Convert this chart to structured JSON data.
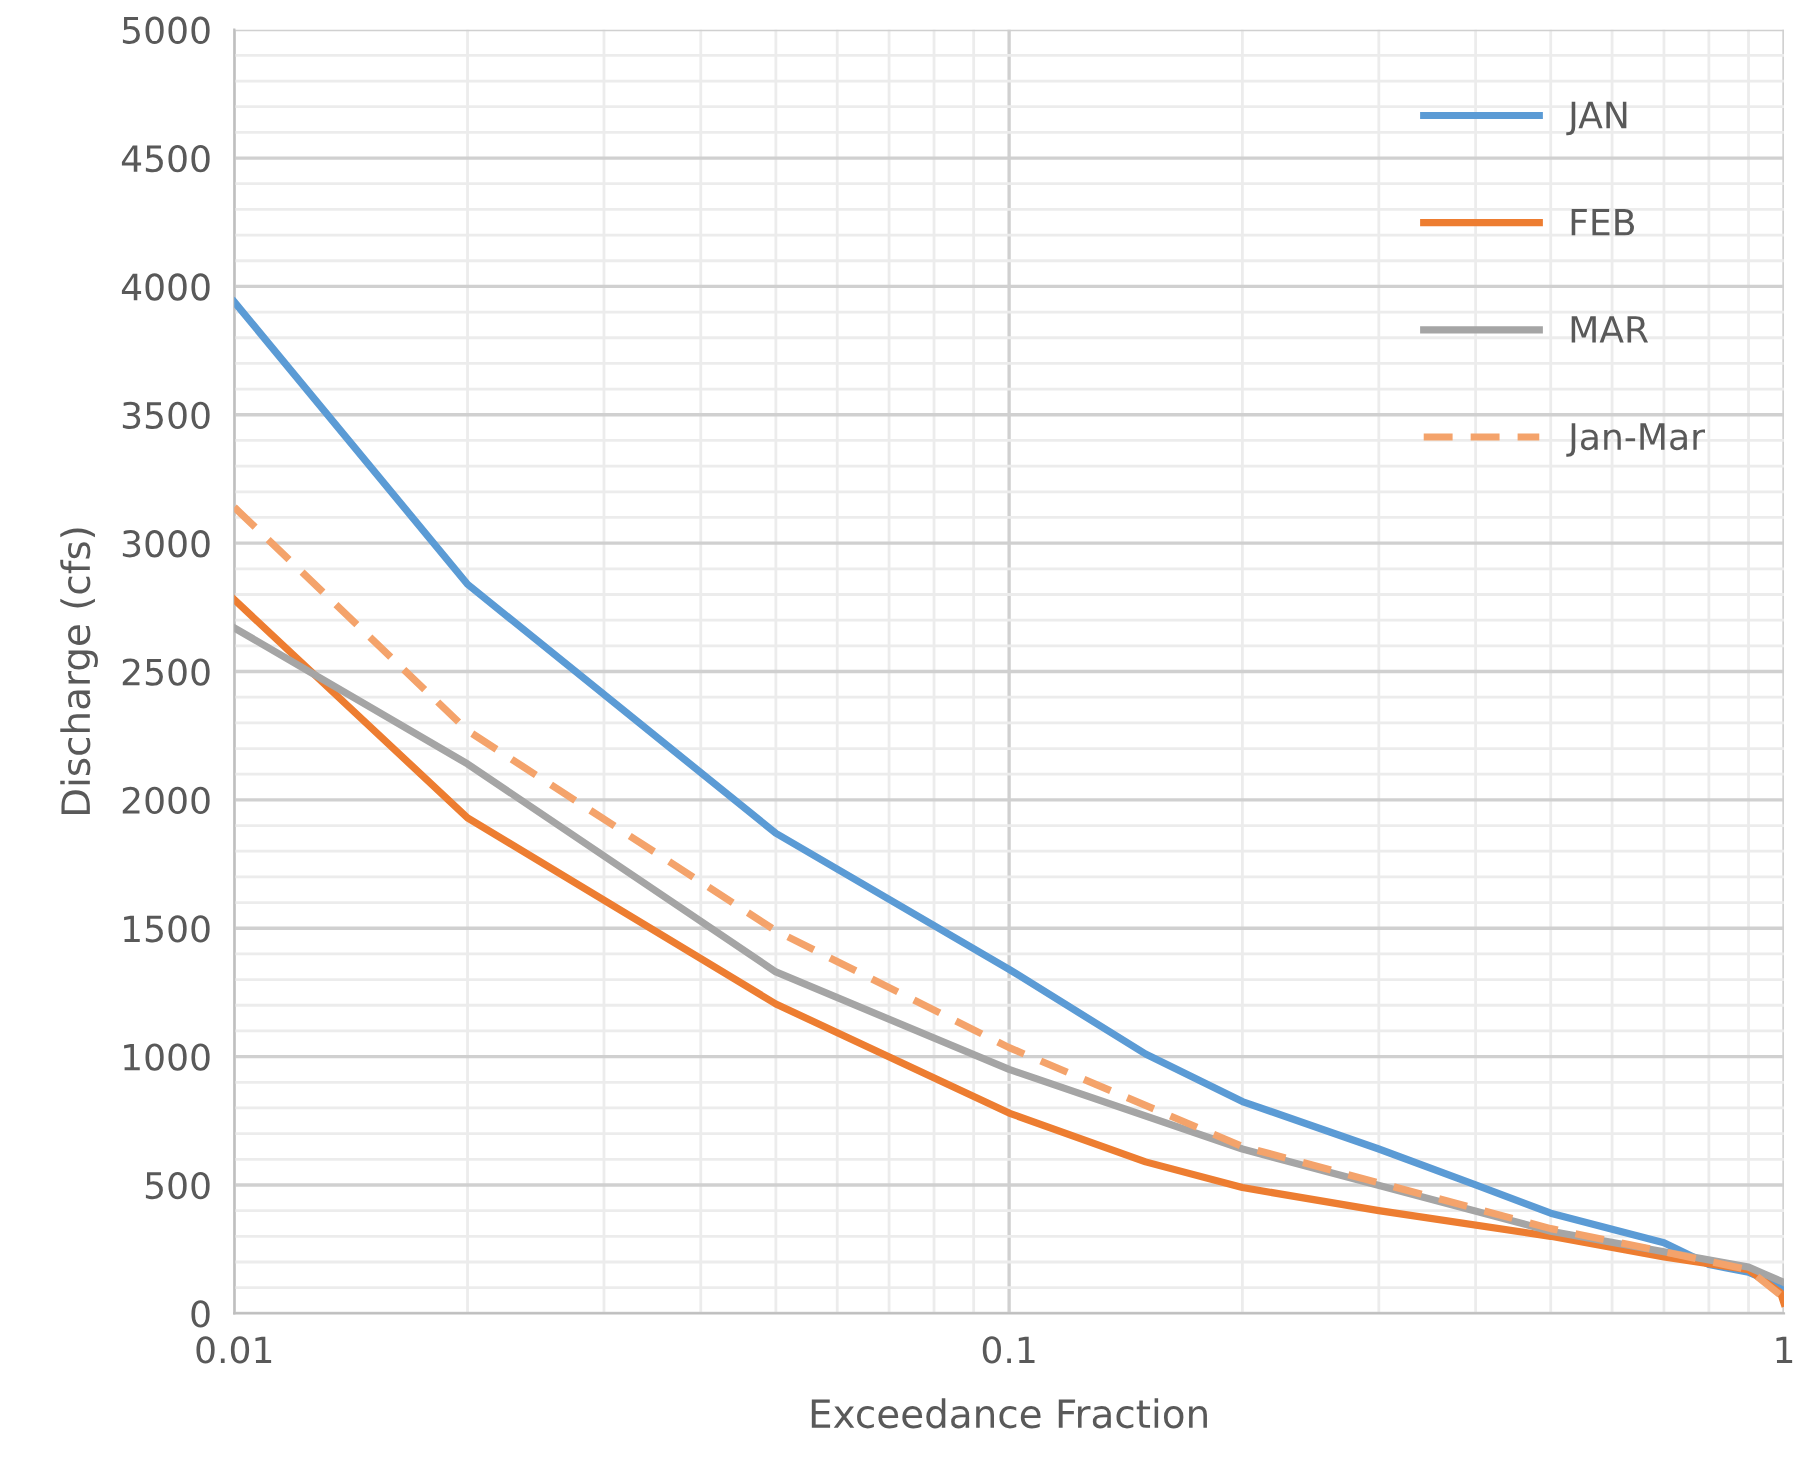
{
  "chart_data": {
    "type": "line",
    "xlabel": "Exceedance Fraction",
    "ylabel": "Discharge (cfs)",
    "log": "x",
    "xlim": [
      0.01,
      1
    ],
    "xticks": [
      0.01,
      0.1,
      1
    ],
    "ylim": [
      0,
      5000
    ],
    "yticks": [
      0,
      500,
      1000,
      1500,
      2000,
      2500,
      3000,
      3500,
      4000,
      4500,
      5000
    ],
    "grid": true,
    "legend": "top right",
    "series": [
      {
        "name": "JAN",
        "color": "#5b9bd5",
        "line_style": "solid",
        "x": [
          0.01,
          0.02,
          0.05,
          0.1,
          0.15,
          0.2,
          0.3,
          0.4,
          0.5,
          0.7,
          0.8,
          0.9,
          1
        ],
        "values": [
          3940,
          2840,
          1870,
          1340,
          1010,
          825,
          640,
          500,
          390,
          275,
          190,
          160,
          100
        ]
      },
      {
        "name": "FEB",
        "color": "#ed7d31",
        "line_style": "solid",
        "x": [
          0.01,
          0.02,
          0.05,
          0.1,
          0.15,
          0.2,
          0.3,
          0.5,
          0.7,
          0.9,
          0.99,
          1
        ],
        "values": [
          2780,
          1930,
          1205,
          780,
          590,
          490,
          400,
          300,
          220,
          170,
          80,
          40
        ]
      },
      {
        "name": "MAR",
        "color": "#a5a5a5",
        "line_style": "solid",
        "x": [
          0.01,
          0.02,
          0.05,
          0.1,
          0.2,
          0.5,
          0.7,
          0.9,
          1
        ],
        "values": [
          2670,
          2140,
          1330,
          950,
          640,
          320,
          240,
          180,
          120
        ]
      },
      {
        "name": "Jan-Mar",
        "color": "#f4a36b",
        "line_style": "dashed",
        "x": [
          0.01,
          0.02,
          0.05,
          0.1,
          0.2,
          0.5,
          0.7,
          0.9,
          1
        ],
        "values": [
          3140,
          2270,
          1490,
          1035,
          650,
          330,
          240,
          170,
          60
        ]
      }
    ]
  }
}
